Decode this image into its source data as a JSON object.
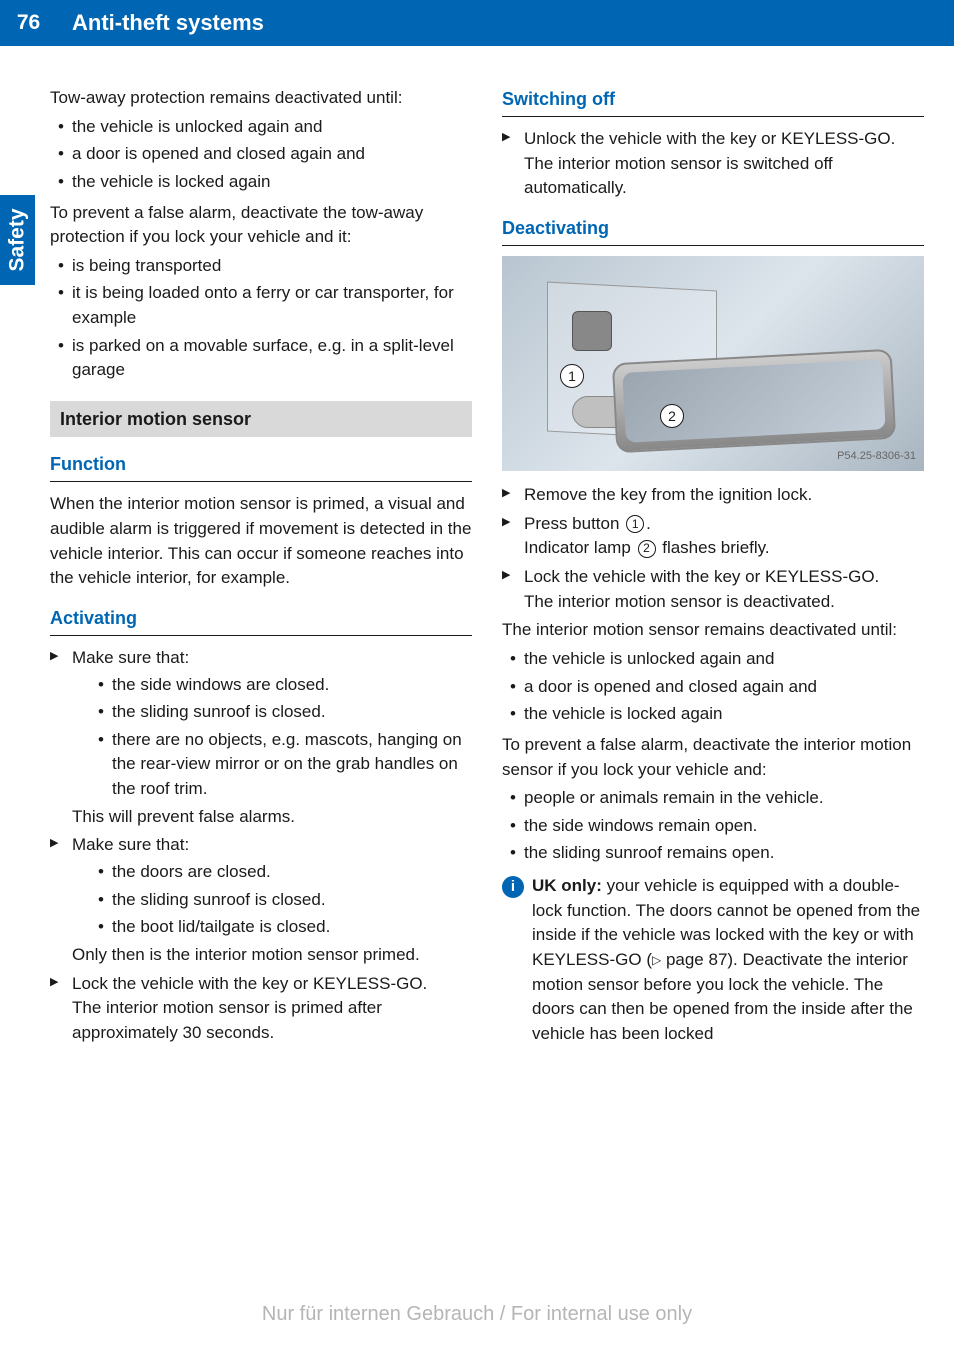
{
  "page_number": "76",
  "section_title": "Anti-theft systems",
  "side_tab": "Safety",
  "left_column": {
    "para1": "Tow-away protection remains deactivated until:",
    "list1": [
      "the vehicle is unlocked again and",
      "a door is opened and closed again and",
      "the vehicle is locked again"
    ],
    "para2": "To prevent a false alarm, deactivate the tow-away protection if you lock your vehicle and it:",
    "list2": [
      "is being transported",
      "it is being loaded onto a ferry or car transporter, for example",
      "is parked on a movable surface, e.g. in a split-level garage"
    ],
    "subsection": "Interior motion sensor",
    "h_function": "Function",
    "function_text": "When the interior motion sensor is primed, a visual and audible alarm is triggered if movement is detected in the vehicle interior. This can occur if someone reaches into the vehicle interior, for example.",
    "h_activating": "Activating",
    "act1_lead": "Make sure that:",
    "act1_items": [
      "the side windows are closed.",
      "the sliding sunroof is closed.",
      "there are no objects, e.g. mascots, hanging on the rear-view mirror or on the grab handles on the roof trim."
    ],
    "act1_result": "This will prevent false alarms.",
    "act2_lead": "Make sure that:",
    "act2_items": [
      "the doors are closed.",
      "the sliding sunroof is closed.",
      "the boot lid/tailgate is closed."
    ],
    "act2_result": "Only then is the interior motion sensor primed.",
    "act3": "Lock the vehicle with the key or KEYLESS-GO.",
    "act3_result": "The interior motion sensor is primed after approximately 30 seconds."
  },
  "right_column": {
    "h_switching_off": "Switching off",
    "switch_off_step": "Unlock the vehicle with the key or KEYLESS-GO.",
    "switch_off_result": "The interior motion sensor is switched off automatically.",
    "h_deactivating": "Deactivating",
    "figure_code": "P54.25-8306-31",
    "callout_1": "1",
    "callout_2": "2",
    "deact_step1": "Remove the key from the ignition lock.",
    "deact_step2a": "Press button ",
    "deact_step2b": ".",
    "deact_step2_result_a": "Indicator lamp ",
    "deact_step2_result_b": " flashes briefly.",
    "deact_step3": "Lock the vehicle with the key or KEYLESS-GO.",
    "deact_step3_result": "The interior motion sensor is deactivated.",
    "para3": "The interior motion sensor remains deactivated until:",
    "list3": [
      "the vehicle is unlocked again and",
      "a door is opened and closed again and",
      "the vehicle is locked again"
    ],
    "para4": "To prevent a false alarm, deactivate the interior motion sensor if you lock your vehicle and:",
    "list4": [
      "people or animals remain in the vehicle.",
      "the side windows remain open.",
      "the sliding sunroof remains open."
    ],
    "info_bold": "UK only:",
    "info_text": " your vehicle is equipped with a double-lock function. The doors cannot be opened from the inside if the vehicle was locked with the key or with KEYLESS-GO (",
    "info_page_ref": " page 87). Deactivate the interior motion sensor before you lock the vehicle. The doors can then be opened from the inside after the vehicle has been locked"
  },
  "footer": "Nur für internen Gebrauch / For internal use only",
  "colors": {
    "primary_blue": "#0066b3",
    "gray_heading_bg": "#d9d9d9",
    "body_text": "#1a1a1a",
    "footer_gray": "#b5b5b5"
  }
}
